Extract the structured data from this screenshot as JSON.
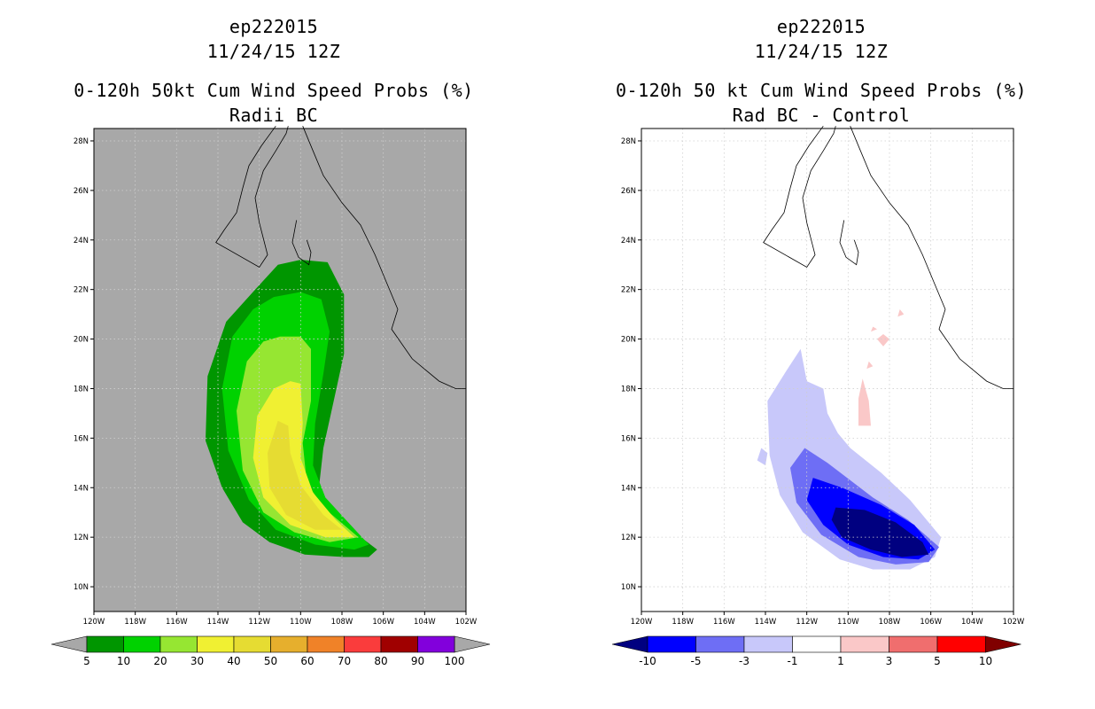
{
  "chart_data": [
    {
      "type": "filled-contour-map",
      "title_lines": [
        "ep222015",
        "11/24/15 12Z",
        "0-120h 50kt Cum Wind Speed Probs (%)",
        "Radii BC"
      ],
      "xlabel": "",
      "ylabel": "",
      "lon_range": [
        -120,
        -102
      ],
      "lat_range": [
        9,
        28.5
      ],
      "x_ticks": [
        "120W",
        "118W",
        "116W",
        "114W",
        "112W",
        "110W",
        "108W",
        "106W",
        "104W",
        "102W"
      ],
      "y_ticks": [
        "10N",
        "12N",
        "14N",
        "16N",
        "18N",
        "20N",
        "22N",
        "24N",
        "26N",
        "28N"
      ],
      "background": "#a8a8a8",
      "grid": true,
      "colorbar": {
        "labels": [
          "5",
          "10",
          "20",
          "30",
          "40",
          "50",
          "60",
          "70",
          "80",
          "90",
          "100"
        ],
        "colors": [
          "#009600",
          "#00d200",
          "#96e632",
          "#f0f032",
          "#e6dc32",
          "#e6af2d",
          "#f08228",
          "#fa3c3c",
          "#a00000",
          "#8200dc"
        ],
        "end_colors": [
          "#a8a8a8",
          "#a8a8a8"
        ]
      },
      "contours": [
        {
          "level": 5,
          "color": "#009600",
          "polygon": [
            [
              -111.1,
              23.0
            ],
            [
              -110.0,
              23.2
            ],
            [
              -108.7,
              23.1
            ],
            [
              -107.9,
              21.8
            ],
            [
              -107.9,
              19.4
            ],
            [
              -108.4,
              17.5
            ],
            [
              -108.9,
              15.6
            ],
            [
              -109.1,
              14.1
            ],
            [
              -108.5,
              13.0
            ],
            [
              -107.4,
              12.2
            ],
            [
              -106.3,
              11.5
            ],
            [
              -106.7,
              11.2
            ],
            [
              -107.9,
              11.2
            ],
            [
              -109.8,
              11.3
            ],
            [
              -111.5,
              11.8
            ],
            [
              -112.8,
              12.6
            ],
            [
              -113.8,
              14.0
            ],
            [
              -114.6,
              15.9
            ],
            [
              -114.5,
              18.5
            ],
            [
              -113.6,
              20.7
            ],
            [
              -112.2,
              22.0
            ]
          ]
        },
        {
          "level": 10,
          "color": "#00d200",
          "polygon": [
            [
              -111.3,
              21.7
            ],
            [
              -110.0,
              21.9
            ],
            [
              -109.0,
              21.6
            ],
            [
              -108.6,
              20.3
            ],
            [
              -108.9,
              18.6
            ],
            [
              -109.3,
              16.6
            ],
            [
              -109.4,
              14.9
            ],
            [
              -108.8,
              13.6
            ],
            [
              -107.7,
              12.6
            ],
            [
              -106.7,
              11.7
            ],
            [
              -107.4,
              11.5
            ],
            [
              -109.3,
              11.7
            ],
            [
              -111.2,
              12.3
            ],
            [
              -112.5,
              13.5
            ],
            [
              -113.5,
              15.5
            ],
            [
              -113.8,
              18.0
            ],
            [
              -113.3,
              20.1
            ],
            [
              -112.3,
              21.2
            ]
          ]
        },
        {
          "level": 20,
          "color": "#96e632",
          "polygon": [
            [
              -111.0,
              20.1
            ],
            [
              -110.0,
              20.1
            ],
            [
              -109.5,
              19.6
            ],
            [
              -109.5,
              17.5
            ],
            [
              -109.9,
              15.8
            ],
            [
              -109.7,
              14.2
            ],
            [
              -108.9,
              13.2
            ],
            [
              -107.2,
              12.0
            ],
            [
              -108.6,
              11.8
            ],
            [
              -110.3,
              12.2
            ],
            [
              -111.8,
              13.0
            ],
            [
              -112.8,
              14.7
            ],
            [
              -113.1,
              17.1
            ],
            [
              -112.6,
              19.1
            ],
            [
              -111.8,
              19.9
            ]
          ]
        },
        {
          "level": 30,
          "color": "#f0f032",
          "polygon": [
            [
              -110.5,
              18.3
            ],
            [
              -110.0,
              18.2
            ],
            [
              -109.9,
              16.6
            ],
            [
              -110.0,
              15.2
            ],
            [
              -109.4,
              13.8
            ],
            [
              -108.3,
              12.7
            ],
            [
              -107.4,
              12.0
            ],
            [
              -108.8,
              12.0
            ],
            [
              -110.5,
              12.5
            ],
            [
              -111.8,
              13.6
            ],
            [
              -112.3,
              15.2
            ],
            [
              -112.1,
              16.9
            ],
            [
              -111.3,
              18.0
            ]
          ]
        },
        {
          "level": 40,
          "color": "#e6dc32",
          "polygon": [
            [
              -111.1,
              16.7
            ],
            [
              -110.6,
              16.5
            ],
            [
              -110.5,
              15.4
            ],
            [
              -110.0,
              14.1
            ],
            [
              -108.9,
              12.9
            ],
            [
              -108.0,
              12.3
            ],
            [
              -109.3,
              12.3
            ],
            [
              -110.7,
              12.9
            ],
            [
              -111.5,
              14.0
            ],
            [
              -111.6,
              15.4
            ]
          ]
        }
      ]
    },
    {
      "type": "filled-contour-map",
      "title_lines": [
        "ep222015",
        "11/24/15 12Z",
        "0-120h 50 kt Cum Wind Speed Probs (%)",
        "Rad BC - Control"
      ],
      "xlabel": "",
      "ylabel": "",
      "lon_range": [
        -120,
        -102
      ],
      "lat_range": [
        9,
        28.5
      ],
      "x_ticks": [
        "120W",
        "118W",
        "116W",
        "114W",
        "112W",
        "110W",
        "108W",
        "106W",
        "104W",
        "102W"
      ],
      "y_ticks": [
        "10N",
        "12N",
        "14N",
        "16N",
        "18N",
        "20N",
        "22N",
        "24N",
        "26N",
        "28N"
      ],
      "background": "#ffffff",
      "grid": true,
      "colorbar": {
        "labels": [
          "-10",
          "-5",
          "-3",
          "-1",
          "1",
          "3",
          "5",
          "10"
        ],
        "colors": [
          "#0000ff",
          "#6e6ef5",
          "#c8c8fa",
          "#ffffff",
          "#fac8c8",
          "#f06e6e",
          "#ff0000"
        ],
        "end_colors": [
          "#000080",
          "#800000"
        ]
      },
      "contours": [
        {
          "level": -1,
          "color": "#c8c8fa",
          "polygon": [
            [
              -112.3,
              19.6
            ],
            [
              -112.0,
              18.3
            ],
            [
              -111.2,
              18.0
            ],
            [
              -111.0,
              17.0
            ],
            [
              -110.5,
              16.2
            ],
            [
              -109.9,
              15.6
            ],
            [
              -108.4,
              14.6
            ],
            [
              -107.0,
              13.5
            ],
            [
              -105.5,
              12.0
            ],
            [
              -105.8,
              11.2
            ],
            [
              -107.0,
              10.7
            ],
            [
              -108.8,
              10.7
            ],
            [
              -110.4,
              11.1
            ],
            [
              -112.2,
              12.2
            ],
            [
              -113.3,
              13.7
            ],
            [
              -113.8,
              15.3
            ],
            [
              -113.9,
              17.5
            ],
            [
              -113.0,
              18.7
            ]
          ]
        },
        {
          "level": -1,
          "color": "#c8c8fa",
          "polygon": [
            [
              -114.2,
              15.6
            ],
            [
              -113.9,
              15.4
            ],
            [
              -114.0,
              14.9
            ],
            [
              -114.4,
              15.1
            ]
          ]
        },
        {
          "level": -3,
          "color": "#6e6ef5",
          "polygon": [
            [
              -112.1,
              15.6
            ],
            [
              -111.0,
              15.0
            ],
            [
              -108.8,
              13.6
            ],
            [
              -107.1,
              12.7
            ],
            [
              -105.6,
              11.6
            ],
            [
              -106.1,
              11.0
            ],
            [
              -107.7,
              10.9
            ],
            [
              -109.5,
              11.2
            ],
            [
              -111.3,
              12.1
            ],
            [
              -112.5,
              13.4
            ],
            [
              -112.8,
              14.8
            ]
          ]
        },
        {
          "level": -5,
          "color": "#0000ff",
          "polygon": [
            [
              -111.7,
              14.4
            ],
            [
              -110.3,
              14.0
            ],
            [
              -108.4,
              13.3
            ],
            [
              -106.8,
              12.5
            ],
            [
              -105.8,
              11.5
            ],
            [
              -106.6,
              11.1
            ],
            [
              -108.3,
              11.2
            ],
            [
              -110.0,
              11.7
            ],
            [
              -111.2,
              12.5
            ],
            [
              -112.0,
              13.5
            ]
          ]
        },
        {
          "level": -10,
          "color": "#000080",
          "polygon": [
            [
              -110.6,
              13.2
            ],
            [
              -109.2,
              13.1
            ],
            [
              -107.7,
              12.6
            ],
            [
              -106.4,
              11.8
            ],
            [
              -106.1,
              11.3
            ],
            [
              -107.4,
              11.2
            ],
            [
              -108.9,
              11.5
            ],
            [
              -110.3,
              12.0
            ],
            [
              -110.8,
              12.7
            ]
          ]
        },
        {
          "level": 1,
          "color": "#fac8c8",
          "polygon": [
            [
              -109.3,
              18.4
            ],
            [
              -109.0,
              17.5
            ],
            [
              -108.9,
              16.5
            ],
            [
              -109.5,
              16.5
            ],
            [
              -109.5,
              17.6
            ]
          ]
        },
        {
          "level": 1,
          "color": "#fac8c8",
          "polygon": [
            [
              -108.3,
              20.2
            ],
            [
              -108.0,
              20.0
            ],
            [
              -108.3,
              19.7
            ],
            [
              -108.6,
              20.0
            ]
          ]
        },
        {
          "level": 1,
          "color": "#fac8c8",
          "polygon": [
            [
              -107.5,
              21.2
            ],
            [
              -107.3,
              21.0
            ],
            [
              -107.6,
              20.9
            ]
          ]
        },
        {
          "level": 1,
          "color": "#fac8c8",
          "polygon": [
            [
              -108.8,
              20.5
            ],
            [
              -108.6,
              20.4
            ],
            [
              -108.9,
              20.3
            ]
          ]
        },
        {
          "level": 1,
          "color": "#fac8c8",
          "polygon": [
            [
              -109.0,
              19.1
            ],
            [
              -108.8,
              18.9
            ],
            [
              -109.1,
              18.8
            ]
          ]
        }
      ]
    }
  ]
}
